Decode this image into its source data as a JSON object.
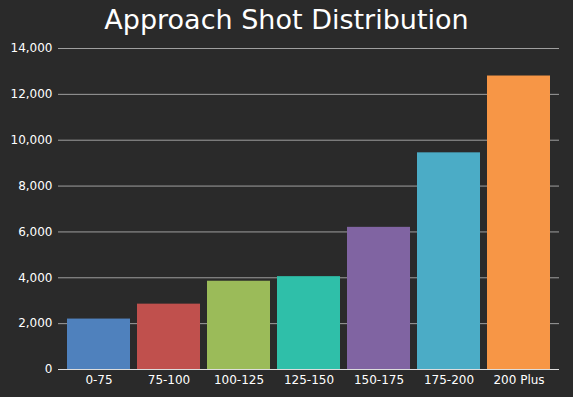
{
  "chart_data": {
    "type": "bar",
    "title": "Approach Shot Distribution",
    "categories": [
      "0-75",
      "75-100",
      "100-125",
      "125-150",
      "150-175",
      "175-200",
      "200 Plus"
    ],
    "values": [
      2200,
      2850,
      3850,
      4050,
      6200,
      9450,
      12800
    ],
    "colors": [
      "#4f81bd",
      "#c0504d",
      "#9bbb59",
      "#2fbfa9",
      "#8064a2",
      "#4bacc6",
      "#f79646"
    ],
    "ylim": [
      0,
      14000
    ],
    "yticks": [
      0,
      {
        "value": 2000,
        "label": "2,000"
      },
      {
        "value": 4000,
        "label": "4,000"
      },
      {
        "value": 6000,
        "label": "6,000"
      },
      {
        "value": 8000,
        "label": "8,000"
      },
      {
        "value": 10000,
        "label": "10,000"
      },
      {
        "value": 12000,
        "label": "12,000"
      },
      {
        "value": 14000,
        "label": "14,000"
      }
    ],
    "grid": true
  }
}
